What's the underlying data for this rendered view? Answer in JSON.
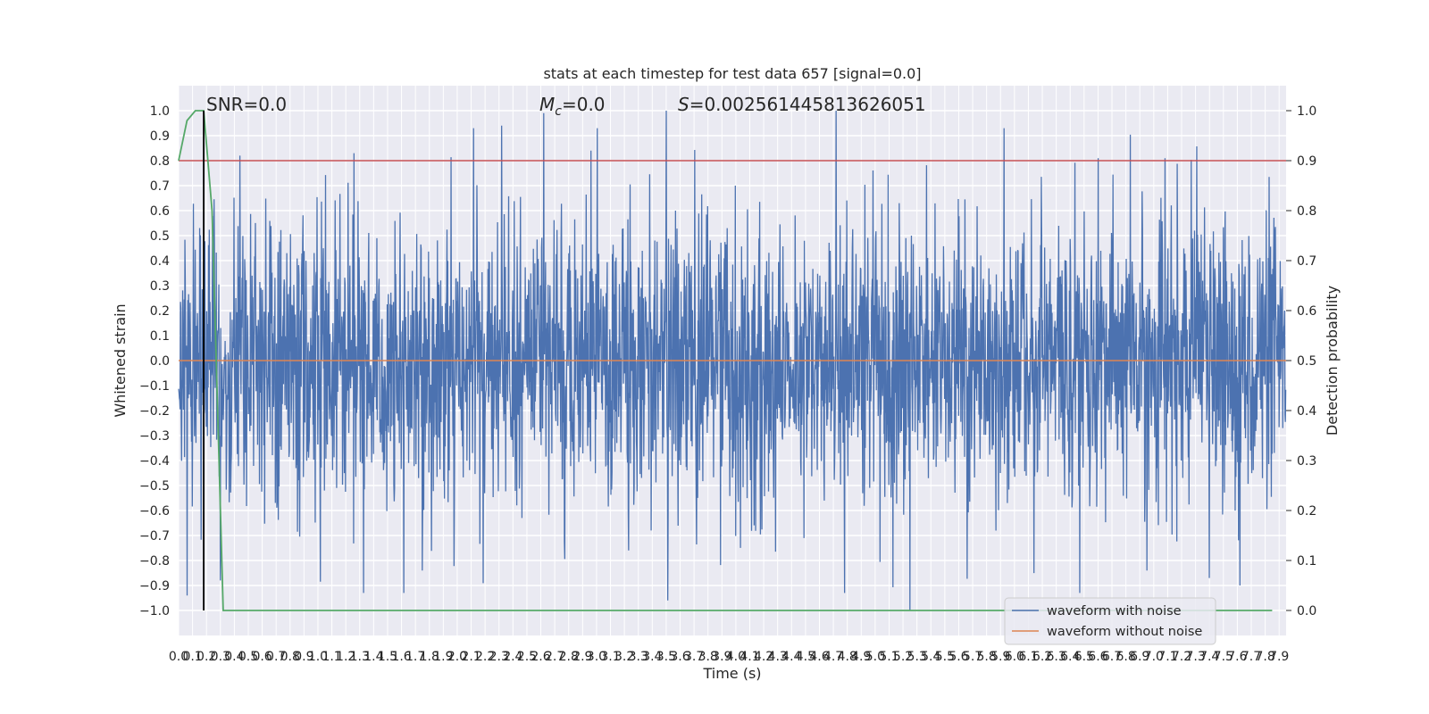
{
  "chart_data": {
    "type": "line",
    "title": "stats at each timestep for test data 657 [signal=0.0]",
    "xlabel": "Time (s)",
    "ylabel": "Whitened strain",
    "y2label": "Detection probability",
    "xlim": [
      0.0,
      7.95
    ],
    "ylim": [
      -1.1,
      1.1
    ],
    "y2lim": [
      -0.05,
      1.05
    ],
    "grid": true,
    "x_tick_step": 0.1,
    "x_tick_max": 7.9,
    "y_ticks": [
      -1.0,
      -0.9,
      -0.8,
      -0.7,
      -0.6,
      -0.5,
      -0.4,
      -0.3,
      -0.2,
      -0.1,
      0.0,
      0.1,
      0.2,
      0.3,
      0.4,
      0.5,
      0.6,
      0.7,
      0.8,
      0.9,
      1.0
    ],
    "y2_ticks": [
      0.0,
      0.1,
      0.2,
      0.3,
      0.4,
      0.5,
      0.6,
      0.7,
      0.8,
      0.9,
      1.0
    ],
    "annotations": {
      "snr": "SNR=0.0",
      "mc_symbol": "M",
      "mc_sub": "c",
      "mc_value": "=0.0",
      "s_symbol": "S",
      "s_value": "=0.002561445813626051"
    },
    "threshold": {
      "axis": "right",
      "value": 0.9,
      "color": "#c44e52"
    },
    "marker_line": {
      "x": 0.18,
      "color": "#000000"
    },
    "legend": {
      "placement": "lower-right",
      "entries": [
        {
          "label": "waveform with noise",
          "color": "#4c72b0"
        },
        {
          "label": "waveform without noise",
          "color": "#dd8452"
        }
      ]
    },
    "series": [
      {
        "name": "waveform with noise",
        "axis": "left",
        "color": "#4c72b0",
        "kind": "noise",
        "typical_amplitude": 0.33,
        "spikes": [
          {
            "x": 0.06,
            "y": -0.94
          },
          {
            "x": 0.3,
            "y": -0.88
          },
          {
            "x": 0.44,
            "y": 0.82
          },
          {
            "x": 1.26,
            "y": 0.83
          },
          {
            "x": 1.75,
            "y": -0.84
          },
          {
            "x": 2.32,
            "y": 0.94
          },
          {
            "x": 2.62,
            "y": 0.99
          },
          {
            "x": 2.96,
            "y": 0.84
          },
          {
            "x": 3.23,
            "y": -0.76
          },
          {
            "x": 3.5,
            "y": 1.0
          },
          {
            "x": 3.51,
            "y": -0.96
          },
          {
            "x": 4.72,
            "y": 1.0
          },
          {
            "x": 5.25,
            "y": -1.0
          },
          {
            "x": 6.6,
            "y": -0.86
          },
          {
            "x": 6.6,
            "y": 0.81
          },
          {
            "x": 6.95,
            "y": -0.84
          },
          {
            "x": 7.08,
            "y": 0.81
          },
          {
            "x": 7.4,
            "y": 0.85
          },
          {
            "x": 7.4,
            "y": -0.87
          },
          {
            "x": 7.62,
            "y": -0.9
          }
        ]
      },
      {
        "name": "waveform without noise",
        "axis": "left",
        "color": "#dd8452",
        "x": [
          0.0,
          7.95
        ],
        "y": [
          0.0,
          0.0
        ]
      },
      {
        "name": "detection probability",
        "axis": "right",
        "color": "#55a868",
        "x": [
          0.0,
          0.06,
          0.12,
          0.18,
          0.24,
          0.32,
          7.85
        ],
        "y": [
          0.9,
          0.98,
          1.0,
          1.0,
          0.8,
          0.0,
          0.0
        ]
      }
    ]
  }
}
